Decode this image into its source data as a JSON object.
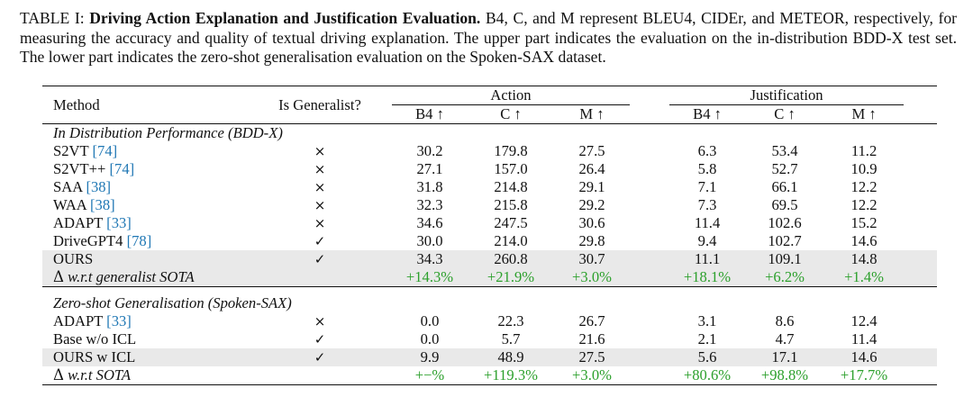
{
  "caption": {
    "label": "TABLE I:",
    "bold_title": "Driving Action Explanation and Justification Evaluation.",
    "text": "B4, C, and M represent BLEU4, CIDEr, and METEOR, respectively, for measuring the accuracy and quality of textual driving explanation. The upper part indicates the evaluation on the in-distribution BDD-X test set. The lower part indicates the zero-shot generalisation evaluation on the Spoken-SAX dataset."
  },
  "header": {
    "method": "Method",
    "is_generalist": "Is Generalist?",
    "group_action": "Action",
    "group_justification": "Justification",
    "subcols": [
      "B4 ↑",
      "C ↑",
      "M ↑",
      "B4 ↑",
      "C ↑",
      "M ↑"
    ]
  },
  "marks": {
    "no": "×",
    "yes": "✓"
  },
  "section1": {
    "title": "In Distribution Performance (BDD-X)",
    "rows": [
      {
        "name": "S2VT",
        "cite": "[74]",
        "gen": "×",
        "vals": [
          "30.2",
          "179.8",
          "27.5",
          "6.3",
          "53.4",
          "11.2"
        ]
      },
      {
        "name": "S2VT++",
        "cite": "[74]",
        "gen": "×",
        "vals": [
          "27.1",
          "157.0",
          "26.4",
          "5.8",
          "52.7",
          "10.9"
        ]
      },
      {
        "name": "SAA",
        "cite": "[38]",
        "gen": "×",
        "vals": [
          "31.8",
          "214.8",
          "29.1",
          "7.1",
          "66.1",
          "12.2"
        ]
      },
      {
        "name": "WAA",
        "cite": "[38]",
        "gen": "×",
        "vals": [
          "32.3",
          "215.8",
          "29.2",
          "7.3",
          "69.5",
          "12.2"
        ]
      },
      {
        "name": "ADAPT",
        "cite": "[33]",
        "gen": "×",
        "vals": [
          "34.6",
          "247.5",
          "30.6",
          "11.4",
          "102.6",
          "15.2"
        ]
      },
      {
        "name": "DriveGPT4",
        "cite": "[78]",
        "gen": "✓",
        "vals": [
          "30.0",
          "214.0",
          "29.8",
          "9.4",
          "102.7",
          "14.6"
        ]
      }
    ],
    "ours": {
      "name": "OURS",
      "gen": "✓",
      "vals": [
        "34.3",
        "260.8",
        "30.7",
        "11.1",
        "109.1",
        "14.8"
      ]
    },
    "delta": {
      "symbol": "Δ",
      "label": "w.r.t generalist SOTA",
      "vals": [
        "+14.3%",
        "+21.9%",
        "+3.0%",
        "+18.1%",
        "+6.2%",
        "+1.4%"
      ]
    }
  },
  "section2": {
    "title": "Zero-shot Generalisation (Spoken-SAX)",
    "rows": [
      {
        "name": "ADAPT",
        "cite": "[33]",
        "gen": "×",
        "vals": [
          "0.0",
          "22.3",
          "26.7",
          "3.1",
          "8.6",
          "12.4"
        ]
      },
      {
        "name": "Base w/o ICL",
        "cite": "",
        "gen": "✓",
        "vals": [
          "0.0",
          "5.7",
          "21.6",
          "2.1",
          "4.7",
          "11.4"
        ]
      }
    ],
    "ours": {
      "name": "OURS w ICL",
      "gen": "✓",
      "vals": [
        "9.9",
        "48.9",
        "27.5",
        "5.6",
        "17.1",
        "14.6"
      ]
    },
    "delta": {
      "symbol": "Δ",
      "label": "w.r.t SOTA",
      "vals": [
        "+−%",
        "+119.3%",
        "+3.0%",
        "+80.6%",
        "+98.8%",
        "+17.7%"
      ]
    }
  },
  "colors": {
    "cite": "#1f77b4",
    "improvement": "#2ca02c",
    "highlight": "#e9e9e9"
  }
}
